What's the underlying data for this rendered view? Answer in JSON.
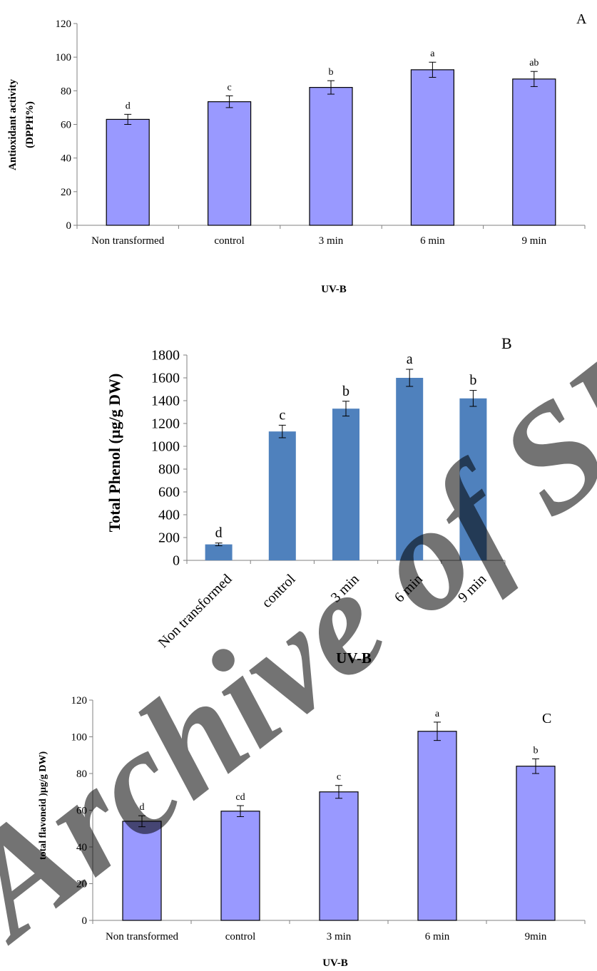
{
  "colors": {
    "panel_a_bar": "#9999ff",
    "panel_b_bar": "#4f81bd",
    "panel_c_bar": "#9999ff",
    "watermark": "#d9d9d9"
  },
  "watermark": {
    "text": "Archive of SID"
  },
  "chart_data": [
    {
      "type": "bar",
      "panel_label": "A",
      "title": "",
      "xlabel": "UV-B",
      "ylabel": [
        "Antioxidant activity",
        "(DPPH%)"
      ],
      "ylim": [
        0,
        120
      ],
      "yticks": [
        0,
        20,
        40,
        60,
        80,
        100,
        120
      ],
      "categories": [
        "Non transformed",
        "control",
        "3 min",
        "6 min",
        "9 min"
      ],
      "values": [
        63,
        73.5,
        82,
        92.5,
        87
      ],
      "errors": [
        3,
        3.5,
        4,
        4.5,
        4.5
      ],
      "letters": [
        "d",
        "c",
        "b",
        "a",
        "ab"
      ],
      "grid": false
    },
    {
      "type": "bar",
      "panel_label": "B",
      "title": "",
      "xlabel": "UV-B",
      "ylabel": [
        "Total Phenol (µg/g DW)"
      ],
      "ylim": [
        0,
        1800
      ],
      "yticks": [
        0,
        200,
        400,
        600,
        800,
        1000,
        1200,
        1400,
        1600,
        1800
      ],
      "categories": [
        "Non transformed",
        "control",
        "3 min",
        "6 min",
        "9 min"
      ],
      "values": [
        140,
        1130,
        1330,
        1600,
        1420
      ],
      "errors": [
        12,
        55,
        65,
        75,
        70
      ],
      "letters": [
        "d",
        "c",
        "b",
        "a",
        "b"
      ],
      "grid": false
    },
    {
      "type": "bar",
      "panel_label": "C",
      "title": "",
      "xlabel": "UV-B",
      "ylabel": [
        "total flavoneid )µg/g DW)"
      ],
      "ylim": [
        0,
        120
      ],
      "yticks": [
        0,
        20,
        40,
        60,
        80,
        100,
        120
      ],
      "categories": [
        "Non transformed",
        "control",
        "3 min",
        "6 min",
        "9min"
      ],
      "values": [
        54,
        59.5,
        70,
        103,
        84
      ],
      "errors": [
        3,
        3,
        3.5,
        5,
        4
      ],
      "letters": [
        "d",
        "cd",
        "c",
        "a",
        "b"
      ],
      "grid": false
    }
  ]
}
